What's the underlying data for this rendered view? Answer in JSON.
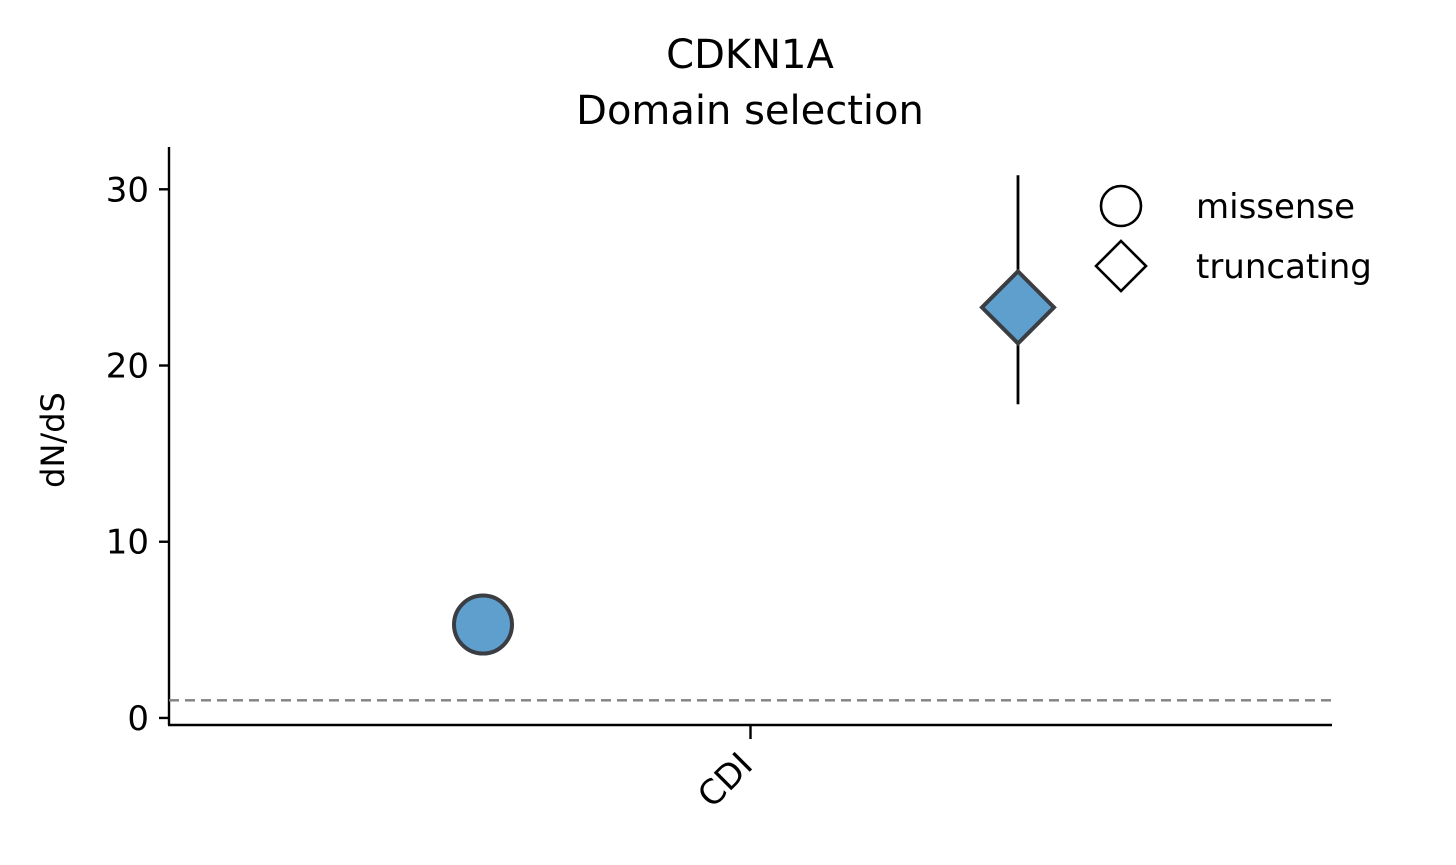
{
  "chart_data": {
    "type": "scatter",
    "title": "CDKN1A",
    "subtitle": "Domain selection",
    "xlabel": "",
    "ylabel": "dN/dS",
    "categories": [
      "CDI"
    ],
    "ylim": [
      -0.4,
      32.4
    ],
    "yticks": [
      0,
      10,
      20,
      30
    ],
    "grid": false,
    "legend_placement": "top-right",
    "reference_line": {
      "y": 1,
      "style": "dashed",
      "color": "#808080"
    },
    "marker_color": "#5f9fcd",
    "marker_edge_color": "#3a3d42",
    "series": [
      {
        "name": "missense",
        "marker": "circle",
        "category": "CDI",
        "offset": -0.23,
        "value": 5.3
      },
      {
        "name": "truncating",
        "marker": "diamond",
        "category": "CDI",
        "offset": 0.23,
        "value": 23.3,
        "ci_low": 17.8,
        "ci_high": 30.8
      }
    ]
  }
}
